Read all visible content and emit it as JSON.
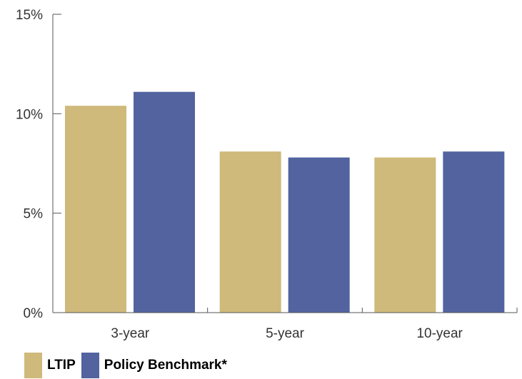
{
  "chart_data": {
    "type": "bar",
    "categories": [
      "3-year",
      "5-year",
      "10-year"
    ],
    "series": [
      {
        "name": "LTIP",
        "values": [
          10.4,
          8.1,
          7.8
        ],
        "color": "#cfb97b"
      },
      {
        "name": "Policy Benchmark*",
        "values": [
          11.1,
          7.8,
          8.1
        ],
        "color": "#52639f"
      }
    ],
    "ylim": [
      0,
      15
    ],
    "yticks": [
      0,
      5,
      10,
      15
    ],
    "ytick_labels": [
      "0%",
      "5%",
      "10%",
      "15%"
    ],
    "title": "",
    "xlabel": "",
    "ylabel": "",
    "grid": false,
    "legend_position": "bottom-left",
    "axis_color": "#555555"
  }
}
